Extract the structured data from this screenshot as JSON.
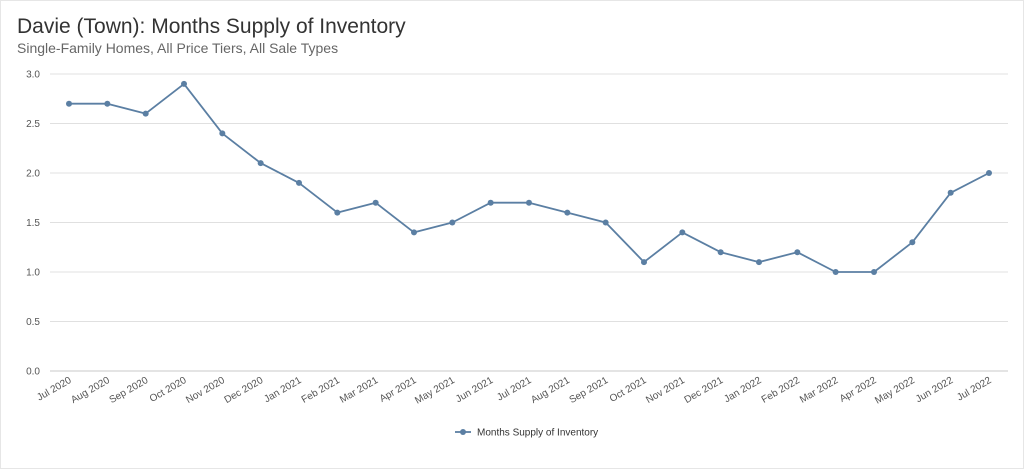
{
  "header": {
    "title": "Davie (Town): Months Supply of Inventory",
    "subtitle": "Single-Family Homes, All Price Tiers, All Sale Types"
  },
  "colors": {
    "series": "#5b7fa3",
    "grid": "#e0e0e0",
    "axis": "#c8c8c8"
  },
  "chart_data": {
    "type": "line",
    "title": "Davie (Town): Months Supply of Inventory",
    "subtitle": "Single-Family Homes, All Price Tiers, All Sale Types",
    "xlabel": "",
    "ylabel": "",
    "ylim": [
      0,
      3
    ],
    "yticks": [
      0,
      0.5,
      1,
      1.5,
      2,
      2.5,
      3
    ],
    "ytick_labels": [
      "0.0",
      "0.5",
      "1.0",
      "1.5",
      "2.0",
      "2.5",
      "3.0"
    ],
    "grid": true,
    "legend_position": "bottom",
    "categories": [
      "Jul 2020",
      "Aug 2020",
      "Sep 2020",
      "Oct 2020",
      "Nov 2020",
      "Dec 2020",
      "Jan 2021",
      "Feb 2021",
      "Mar 2021",
      "Apr 2021",
      "May 2021",
      "Jun 2021",
      "Jul 2021",
      "Aug 2021",
      "Sep 2021",
      "Oct 2021",
      "Nov 2021",
      "Dec 2021",
      "Jan 2022",
      "Feb 2022",
      "Mar 2022",
      "Apr 2022",
      "May 2022",
      "Jun 2022",
      "Jul 2022"
    ],
    "series": [
      {
        "name": "Months Supply of Inventory",
        "values": [
          2.7,
          2.7,
          2.6,
          2.9,
          2.4,
          2.1,
          1.9,
          1.6,
          1.7,
          1.4,
          1.5,
          1.7,
          1.7,
          1.6,
          1.5,
          1.1,
          1.4,
          1.2,
          1.1,
          1.2,
          1.0,
          1.0,
          1.3,
          1.8,
          2.0
        ]
      }
    ]
  }
}
